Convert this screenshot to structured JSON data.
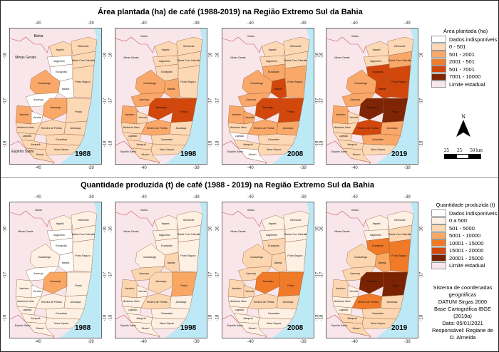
{
  "panels": {
    "top": {
      "title": "Área plantada (ha) de café (1988-2019) na Região Extremo Sul da Bahia",
      "legend": {
        "title": "Área plantada (ha)",
        "items": [
          {
            "label": "Dados indisponíveis",
            "color": "#ffffff"
          },
          {
            "label": "0 - 501",
            "color": "#fdd8b5"
          },
          {
            "label": "501 - 2001",
            "color": "#f9a869"
          },
          {
            "label": "2001 - 501",
            "color": "#f07e31"
          },
          {
            "label": "501 - 7001",
            "color": "#d2470c"
          },
          {
            "label": "7001 - 10000",
            "color": "#7f2505"
          },
          {
            "label": "Limite estadual",
            "color": "#f9e6ea"
          }
        ]
      },
      "maps": [
        {
          "year": "1988"
        },
        {
          "year": "1998"
        },
        {
          "year": "2008"
        },
        {
          "year": "2019"
        }
      ]
    },
    "bottom": {
      "title": "Quantidade produzida (t) de café (1988 - 2019) na Região Extremo Sul da Bahia",
      "legend": {
        "title": "Quantidade produzida (t)",
        "items": [
          {
            "label": "Dados indisponíveis",
            "color": "#ffffff"
          },
          {
            "label": "0 a 500",
            "color": "#fef0e2"
          },
          {
            "label": "501 - 5000",
            "color": "#fbd6b0"
          },
          {
            "label": "5001 - 10000",
            "color": "#f9a762"
          },
          {
            "label": "10001 - 15000",
            "color": "#f07a27"
          },
          {
            "label": "15001 - 20000",
            "color": "#d4480b"
          },
          {
            "label": "20001 - 25000",
            "color": "#7a2303"
          },
          {
            "label": "Limite estadual",
            "color": "#f9e6ea"
          }
        ]
      },
      "maps": [
        {
          "year": "1988"
        },
        {
          "year": "1998"
        },
        {
          "year": "2008"
        },
        {
          "year": "2019"
        }
      ]
    }
  },
  "axes": {
    "lon_left": "-40",
    "lon_right": "-39",
    "lat_top": "-16",
    "lat_mid": "-17",
    "lat_bottom": "-18"
  },
  "regions": {
    "bahia": "Bahia",
    "minas": "Minas Gerais",
    "espirito": "Espírito Santo"
  },
  "municipalities": {
    "itapebi": "Itapebi",
    "belmonte": "Belmonte",
    "itagimirim": "Itagimirim",
    "santa_cruz": "Santa Cruz Cabrália",
    "eunapolis": "Eunápolis",
    "guaratinga": "Guaratinga",
    "itabela": "Itabela",
    "porto_seguro": "Porto Seguro",
    "jucurucu": "Jucuruçu",
    "itamaraju": "Itamaraju",
    "itanhem": "Itanhém",
    "vereda": "Vereda",
    "prado": "Prado",
    "medeiros_neto": "Medeiros Neto",
    "teixeira": "Teixeira de Freitas",
    "alcobaca": "Alcobaça",
    "lajedao": "Lajedão",
    "caravelas": "Caravelas",
    "ibirapua": "Ibirapuã",
    "nova_vicosa": "Nova Viçosa",
    "mucuri": "Mucuri"
  },
  "north_arrow": {
    "label": "N"
  },
  "scale_bar": {
    "labels": [
      "25",
      "25",
      "50 km"
    ]
  },
  "credits": {
    "line1": "Sistema de coordenadas",
    "line2": "geográficas",
    "line3": "DATUM Sirgas 2000",
    "line4": "Base Cartográfica IBGE",
    "line5": "(2019a)",
    "line6": "Data: 05/01/2021",
    "line7": "Responsável: Regiane de",
    "line8": "O. Almeida"
  }
}
